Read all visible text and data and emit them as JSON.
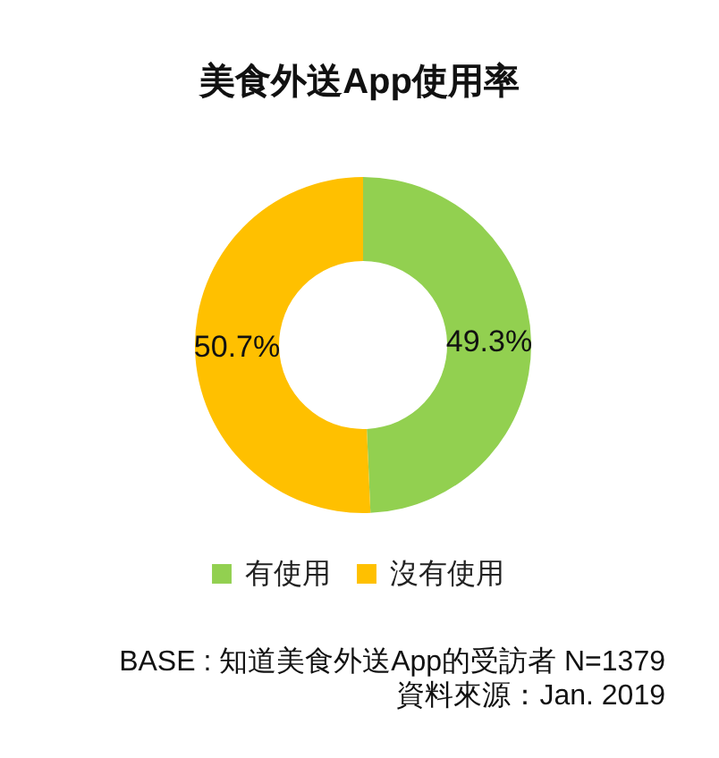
{
  "chart_data": {
    "type": "donut",
    "title": "美食外送App使用率",
    "categories": [
      "有使用",
      "沒有使用"
    ],
    "values": [
      49.3,
      50.7
    ],
    "colors": [
      "#92d050",
      "#ffc000"
    ],
    "value_labels": [
      "49.3%",
      "50.7%"
    ],
    "legend": "bottom",
    "annotations": [
      "BASE : 知道美食外送App的受訪者 N=1379",
      "資料來源：Jan. 2019"
    ]
  }
}
